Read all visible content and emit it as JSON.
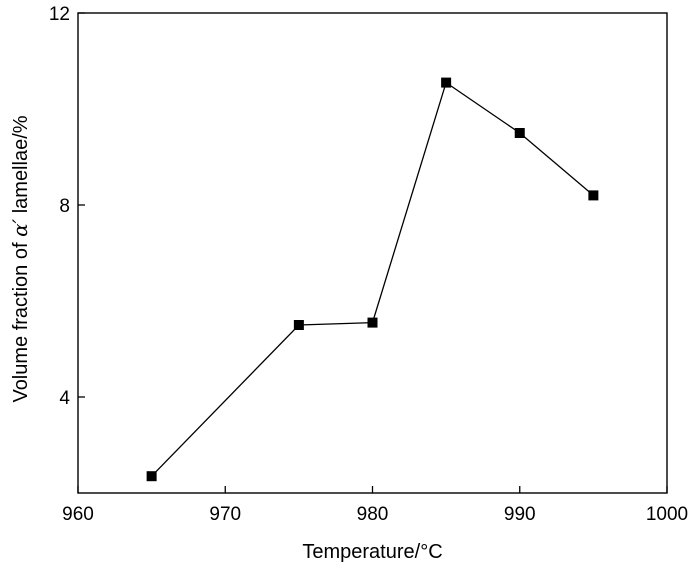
{
  "chart_data": {
    "type": "line",
    "title": "",
    "xlabel": "Temperature/°C",
    "ylabel_parts": {
      "before": "Volume fraction of ",
      "symbol": "α′",
      "after": " lamellae/%"
    },
    "xlim": [
      960,
      1000
    ],
    "ylim": [
      2,
      12
    ],
    "x_ticks": [
      960,
      970,
      980,
      990,
      1000
    ],
    "y_ticks": [
      4,
      8,
      12
    ],
    "grid": false,
    "legend": "none",
    "marker": "filled-square",
    "colors": {
      "line": "#000000",
      "marker": "#000000",
      "axis": "#000000",
      "background": "#ffffff"
    },
    "series": [
      {
        "x": [
          965,
          975,
          980,
          985,
          990,
          995
        ],
        "y": [
          2.35,
          5.5,
          5.55,
          10.55,
          9.5,
          8.2
        ]
      }
    ]
  }
}
